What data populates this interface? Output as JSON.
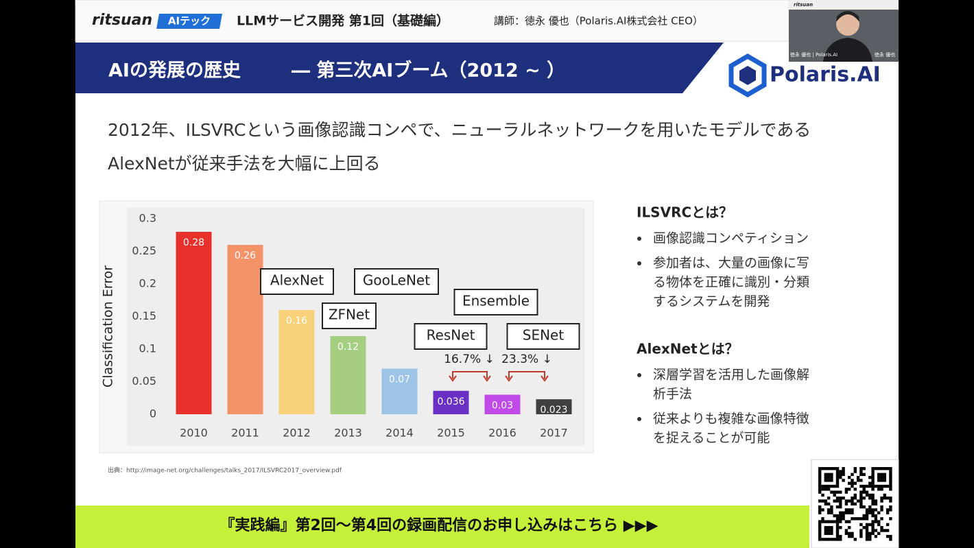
{
  "header": {
    "brand": "ritsuan",
    "badge": "AIテック",
    "title": "LLMサービス開発 第1回（基礎編）",
    "lecturer": "講師：徳永 優也（Polaris.AI株式会社 CEO）"
  },
  "video": {
    "brand": "ritsuan",
    "name_tag": "徳永 優也 | Polaris.AI",
    "side_name": "徳永 優也"
  },
  "slide": {
    "section_title": "AIの発展の歴史",
    "section_subtitle": "― 第三次AIブーム（2012 ~ ）",
    "logo": "Polaris.AI",
    "lead": [
      "2012年、ILSVRCという画像認識コンペで、ニューラルネットワークを用いたモデルである",
      "AlexNetが従来手法を大幅に上回る"
    ],
    "source": "出典：http://image-net.org/challenges/talks_2017/ILSVRC2017_overview.pdf",
    "sidebar": [
      {
        "heading": "ILSVRCとは？",
        "bullets": [
          [
            "画像認識コンペティション"
          ],
          [
            "参加者は、大量の画像に写",
            "る物体を正確に識別・分類",
            "するシステムを開発"
          ]
        ]
      },
      {
        "heading": "AlexNetとは？",
        "bullets": [
          [
            "深層学習を活用した画像解",
            "析手法"
          ],
          [
            "従来よりも複雑な画像特徴",
            "を捉えることが可能"
          ]
        ]
      }
    ]
  },
  "chart_data": {
    "type": "bar",
    "y_label": "Classification Error",
    "categories": [
      "2010",
      "2011",
      "2012",
      "2013",
      "2014",
      "2015",
      "2016",
      "2017"
    ],
    "values": [
      0.28,
      0.26,
      0.16,
      0.12,
      0.07,
      0.036,
      0.03,
      0.023
    ],
    "colors": [
      "#e8312a",
      "#f4926a",
      "#f7d27a",
      "#a6ce80",
      "#9dc3e6",
      "#6a2fc4",
      "#c04be8",
      "#404040"
    ],
    "ylim": [
      0,
      0.3
    ],
    "yticks": [
      0,
      0.05,
      0.1,
      0.15,
      0.2,
      0.25,
      0.3
    ],
    "grid": false,
    "annotations": [
      "AlexNet",
      "ZFNet",
      "GooLeNet",
      "Ensemble",
      "ResNet",
      "SENet",
      "16.7% ↓",
      "23.3% ↓"
    ]
  },
  "banner": "『実践編』第2回～第4回の録画配信のお申し込みはこちら ▶▶▶"
}
